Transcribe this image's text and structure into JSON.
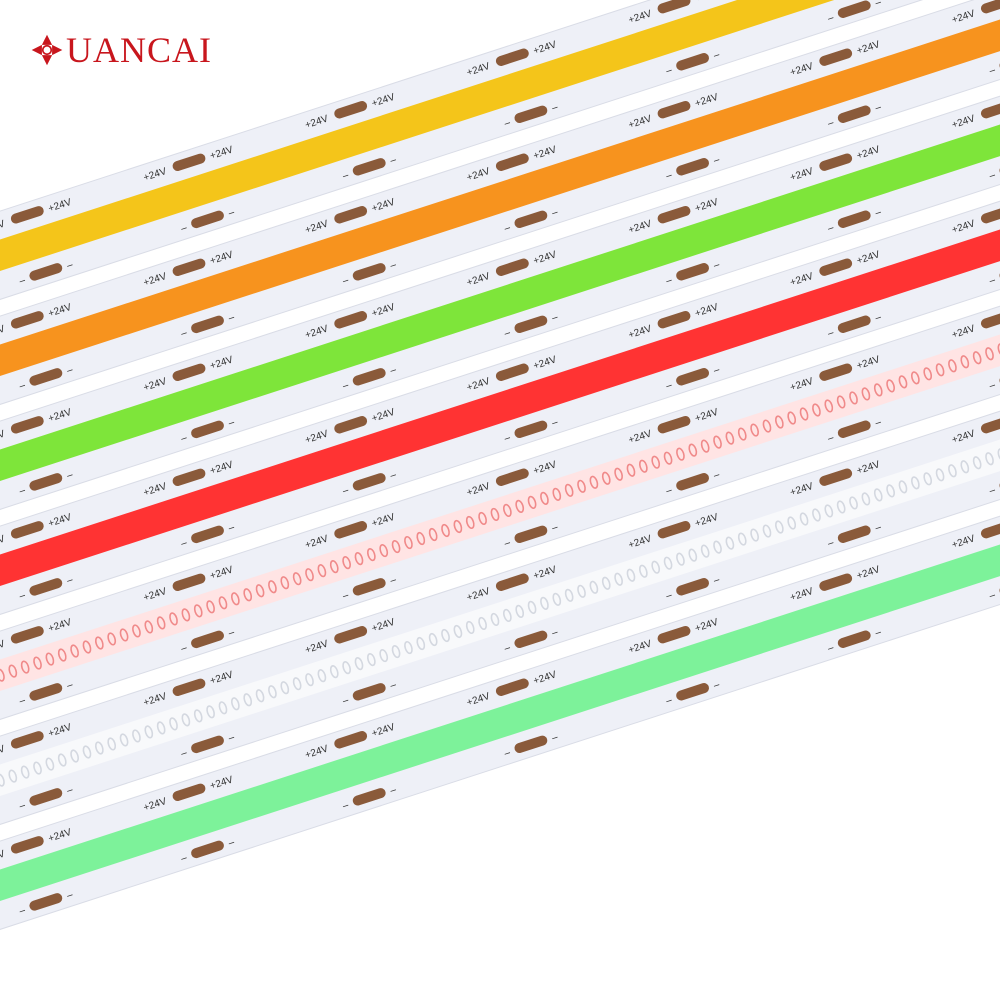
{
  "brand": {
    "logo_text": "UANCAI",
    "logo_color": "#c8161d",
    "logo_mark_icon": "compass-rose-icon"
  },
  "strip_labels": {
    "positive": "+24V",
    "negative": "–"
  },
  "colors": {
    "pcb": "#eef0f7",
    "pcb_edge": "#d9dce6",
    "pad": "#8a5a3a",
    "label_text": "#333333"
  },
  "strips": [
    {
      "name": "yellow-cob-strip",
      "type": "cob",
      "color": "#f4c51a"
    },
    {
      "name": "orange-cob-strip",
      "type": "cob",
      "color": "#f7931e"
    },
    {
      "name": "green-cob-strip",
      "type": "cob",
      "color": "#7ee53a"
    },
    {
      "name": "red-cob-strip",
      "type": "cob",
      "color": "#ff3333"
    },
    {
      "name": "pink-led-strip",
      "type": "dotted",
      "color": "#ffe4e4",
      "dot_color": "#f08a8a"
    },
    {
      "name": "white-led-strip",
      "type": "dotted",
      "color": "#f8f9fb",
      "dot_color": "#d4d8e0"
    },
    {
      "name": "mint-cob-strip",
      "type": "cob",
      "color": "#7df29a"
    }
  ]
}
